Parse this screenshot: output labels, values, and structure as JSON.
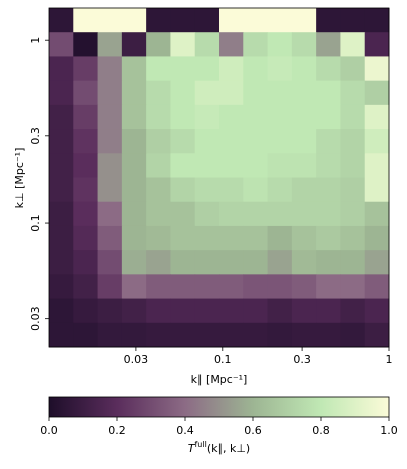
{
  "chart_data": {
    "type": "heatmap",
    "xlabel": "k∥ [Mpc⁻¹]",
    "ylabel": "k⊥ [Mpc⁻¹]",
    "xscale": "log",
    "yscale": "log",
    "xlim": [
      0.009,
      1
    ],
    "ylim": [
      0.021,
      1.5
    ],
    "xticks": [
      0.03,
      0.1,
      0.3,
      1
    ],
    "yticks": [
      0.03,
      0.1,
      0.3,
      1
    ],
    "colormap": [
      "#1e0e2a",
      "#5a2d5c",
      "#8c6b85",
      "#9db593",
      "#c0e8b4",
      "#fbfbd8"
    ],
    "clim": [
      0,
      1
    ],
    "cticks": [
      {
        "value": 0,
        "label": "0.0"
      },
      {
        "value": 0.2,
        "label": "0.2"
      },
      {
        "value": 0.4,
        "label": "0.4"
      },
      {
        "value": 0.6,
        "label": "0.6"
      },
      {
        "value": 0.8,
        "label": "0.8"
      },
      {
        "value": 1,
        "label": "1.0"
      }
    ],
    "clabel": {
      "base": "T",
      "sup": "full",
      "rest": "(k∥, k⊥)"
    },
    "z": [
      [
        0.05,
        1.0,
        1.0,
        1.0,
        0.05,
        0.05,
        0.05,
        1.0,
        1.0,
        1.0,
        1.0,
        0.05,
        0.05,
        0.05
      ],
      [
        0.3,
        0.02,
        0.55,
        0.1,
        0.6,
        0.9,
        0.75,
        0.45,
        0.75,
        0.8,
        0.75,
        0.55,
        0.9,
        0.15
      ],
      [
        0.15,
        0.25,
        0.45,
        0.65,
        0.8,
        0.8,
        0.8,
        0.85,
        0.8,
        0.82,
        0.8,
        0.75,
        0.7,
        0.95
      ],
      [
        0.15,
        0.3,
        0.45,
        0.65,
        0.75,
        0.8,
        0.85,
        0.85,
        0.8,
        0.8,
        0.8,
        0.8,
        0.75,
        0.7
      ],
      [
        0.12,
        0.25,
        0.45,
        0.65,
        0.75,
        0.8,
        0.82,
        0.8,
        0.8,
        0.8,
        0.8,
        0.8,
        0.75,
        0.9
      ],
      [
        0.12,
        0.22,
        0.45,
        0.6,
        0.7,
        0.75,
        0.8,
        0.8,
        0.8,
        0.8,
        0.8,
        0.75,
        0.72,
        0.85
      ],
      [
        0.12,
        0.2,
        0.5,
        0.6,
        0.72,
        0.8,
        0.8,
        0.8,
        0.8,
        0.78,
        0.78,
        0.75,
        0.72,
        0.9
      ],
      [
        0.12,
        0.22,
        0.5,
        0.6,
        0.65,
        0.72,
        0.75,
        0.75,
        0.78,
        0.75,
        0.72,
        0.72,
        0.7,
        0.9
      ],
      [
        0.1,
        0.2,
        0.4,
        0.6,
        0.65,
        0.65,
        0.7,
        0.72,
        0.72,
        0.72,
        0.72,
        0.72,
        0.7,
        0.65
      ],
      [
        0.1,
        0.18,
        0.35,
        0.6,
        0.62,
        0.65,
        0.65,
        0.65,
        0.65,
        0.6,
        0.65,
        0.68,
        0.65,
        0.6
      ],
      [
        0.1,
        0.15,
        0.3,
        0.58,
        0.55,
        0.6,
        0.6,
        0.6,
        0.6,
        0.55,
        0.62,
        0.6,
        0.6,
        0.55
      ],
      [
        0.08,
        0.12,
        0.25,
        0.4,
        0.35,
        0.35,
        0.35,
        0.35,
        0.33,
        0.33,
        0.35,
        0.4,
        0.4,
        0.35
      ],
      [
        0.05,
        0.08,
        0.1,
        0.12,
        0.15,
        0.15,
        0.15,
        0.15,
        0.15,
        0.12,
        0.15,
        0.15,
        0.12,
        0.15
      ],
      [
        0.05,
        0.05,
        0.07,
        0.07,
        0.08,
        0.08,
        0.08,
        0.08,
        0.08,
        0.07,
        0.08,
        0.08,
        0.07,
        0.1
      ]
    ]
  }
}
